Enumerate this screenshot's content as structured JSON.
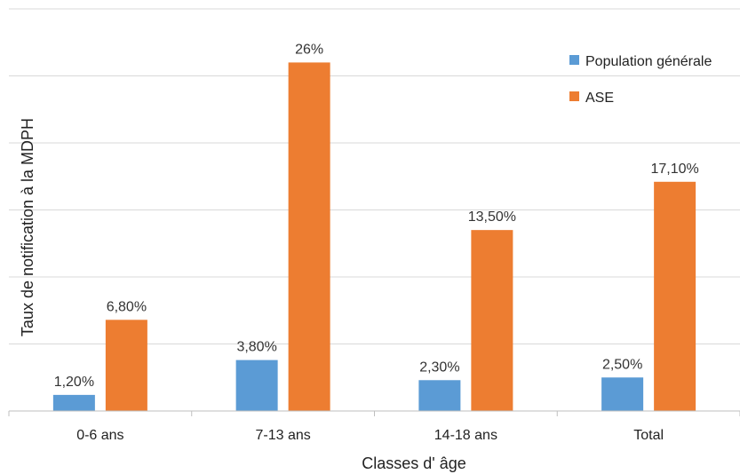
{
  "chart_data": {
    "type": "bar",
    "categories": [
      "0-6 ans",
      "7-13 ans",
      "14-18 ans",
      "Total"
    ],
    "series": [
      {
        "name": "Population générale",
        "color": "#5b9bd5",
        "values": [
          1.2,
          3.8,
          2.3,
          2.5
        ],
        "labels": [
          "1,20%",
          "3,80%",
          "2,30%",
          "2,50%"
        ]
      },
      {
        "name": "ASE",
        "color": "#ed7d31",
        "values": [
          6.8,
          26,
          13.5,
          17.1
        ],
        "labels": [
          "6,80%",
          "26%",
          "13,50%",
          "17,10%"
        ]
      }
    ],
    "xlabel": "Classes d' âge",
    "ylabel": "Taux de notification à la MDPH",
    "ylim": [
      0,
      30
    ],
    "grid": true,
    "legend": "top-right"
  }
}
